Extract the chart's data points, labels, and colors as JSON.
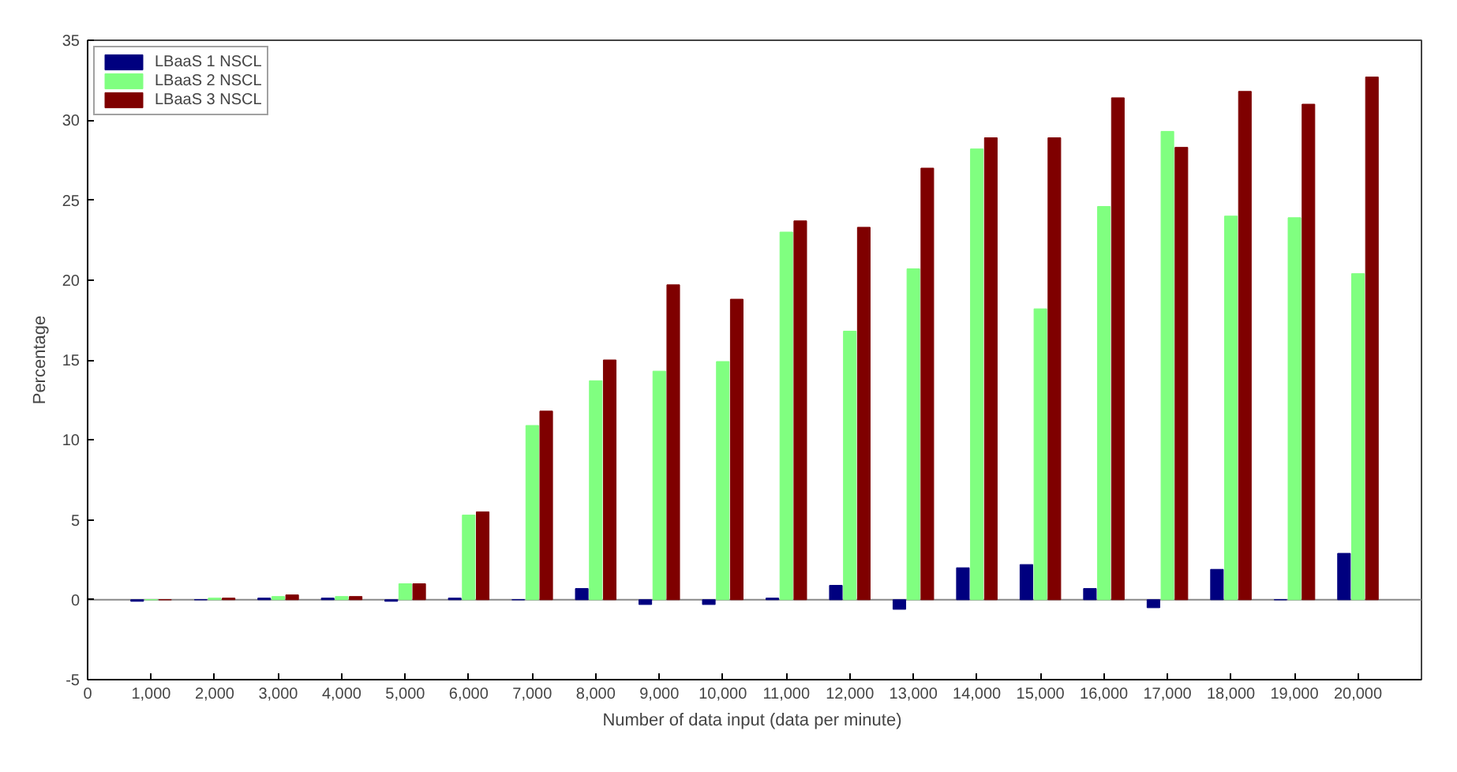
{
  "chart_data": {
    "type": "bar",
    "xlabel": "Number of  data input (data per minute)",
    "ylabel": "Percentage",
    "x": [
      1000,
      2000,
      3000,
      4000,
      5000,
      6000,
      7000,
      8000,
      9000,
      10000,
      11000,
      12000,
      13000,
      14000,
      15000,
      16000,
      17000,
      18000,
      19000,
      20000
    ],
    "series": [
      {
        "name": "LBaaS 1 NSCL",
        "color": "#00007f",
        "values": [
          -0.1,
          0,
          0.1,
          0.1,
          -0.1,
          0.1,
          0,
          0.7,
          -0.3,
          -0.3,
          0.1,
          0.9,
          -0.6,
          2.0,
          2.2,
          0.7,
          -0.5,
          1.9,
          0,
          2.9
        ]
      },
      {
        "name": "LBaaS 2 NSCL",
        "color": "#80ff80",
        "values": [
          0,
          0.1,
          0.2,
          0.2,
          1.0,
          5.3,
          10.9,
          13.7,
          14.3,
          14.9,
          23.0,
          16.8,
          20.7,
          28.2,
          18.2,
          24.6,
          29.3,
          24.0,
          23.9,
          20.4
        ]
      },
      {
        "name": "LBaaS 3 NSCL",
        "color": "#7f0000",
        "values": [
          0,
          0.1,
          0.3,
          0.2,
          1.0,
          5.5,
          11.8,
          15.0,
          19.7,
          18.8,
          23.7,
          23.3,
          27.0,
          28.9,
          28.9,
          31.4,
          28.3,
          31.8,
          31.0,
          32.7
        ]
      }
    ],
    "xlim": [
      0,
      21000
    ],
    "xticks": [
      0,
      {
        "value": 1000,
        "label": "1,000"
      },
      {
        "value": 2000,
        "label": "2,000"
      },
      {
        "value": 3000,
        "label": "3,000"
      },
      {
        "value": 4000,
        "label": "4,000"
      },
      {
        "value": 5000,
        "label": "5,000"
      },
      {
        "value": 6000,
        "label": "6,000"
      },
      {
        "value": 7000,
        "label": "7,000"
      },
      {
        "value": 8000,
        "label": "8,000"
      },
      {
        "value": 9000,
        "label": "9,000"
      },
      {
        "value": 10000,
        "label": "10,000"
      },
      {
        "value": 11000,
        "label": "11,000"
      },
      {
        "value": 12000,
        "label": "12,000"
      },
      {
        "value": 13000,
        "label": "13,000"
      },
      {
        "value": 14000,
        "label": "14,000"
      },
      {
        "value": 15000,
        "label": "15,000"
      },
      {
        "value": 16000,
        "label": "16,000"
      },
      {
        "value": 17000,
        "label": "17,000"
      },
      {
        "value": 18000,
        "label": "18,000"
      },
      {
        "value": 19000,
        "label": "19,000"
      },
      {
        "value": 20000,
        "label": "20,000"
      }
    ],
    "ylim": [
      -5,
      35
    ],
    "yticks": [
      -5,
      0,
      5,
      10,
      15,
      20,
      25,
      30,
      35
    ],
    "legend": "top left"
  }
}
